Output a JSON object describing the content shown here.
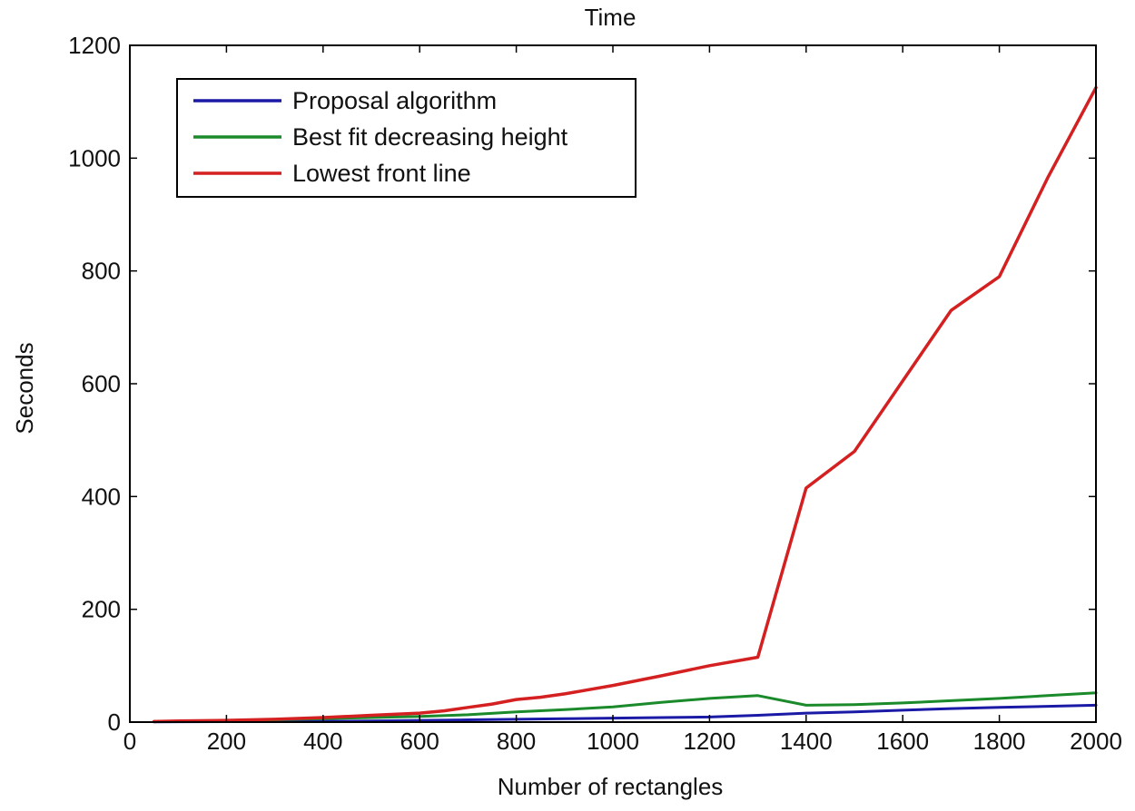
{
  "chart_data": {
    "type": "line",
    "title": "Time",
    "xlabel": "Number of rectangles",
    "ylabel": "Seconds",
    "xlim": [
      0,
      2000
    ],
    "ylim": [
      0,
      1200
    ],
    "xticks": [
      0,
      200,
      400,
      600,
      800,
      1000,
      1200,
      1400,
      1600,
      1800,
      2000
    ],
    "yticks": [
      0,
      200,
      400,
      600,
      800,
      1000,
      1200
    ],
    "grid": false,
    "legend_position": "top-left",
    "series": [
      {
        "name": "Proposal algorithm",
        "color": "#1a1aa6",
        "x": [
          50,
          100,
          200,
          300,
          400,
          500,
          600,
          700,
          800,
          900,
          1000,
          1100,
          1200,
          1300,
          1400,
          1500,
          1600,
          1700,
          1800,
          1900,
          2000
        ],
        "y": [
          0.5,
          0.6,
          0.8,
          1,
          1.5,
          2,
          3,
          4,
          5,
          6,
          7,
          8,
          9,
          12,
          16,
          18,
          21,
          24,
          26,
          28,
          30
        ]
      },
      {
        "name": "Best fit decreasing height",
        "color": "#1a8a2a",
        "x": [
          50,
          100,
          200,
          300,
          400,
          500,
          600,
          700,
          800,
          900,
          1000,
          1100,
          1200,
          1300,
          1400,
          1500,
          1600,
          1700,
          1800,
          1900,
          2000
        ],
        "y": [
          1,
          1.5,
          2,
          4,
          6,
          8,
          10,
          13,
          18,
          22,
          27,
          35,
          42,
          47,
          30,
          31,
          34,
          38,
          42,
          47,
          52
        ]
      },
      {
        "name": "Lowest front line",
        "color": "#d42020",
        "x": [
          50,
          100,
          200,
          300,
          400,
          500,
          600,
          650,
          700,
          750,
          800,
          850,
          900,
          1000,
          1100,
          1200,
          1300,
          1400,
          1500,
          1600,
          1700,
          1800,
          1900,
          2000
        ],
        "y": [
          1,
          2,
          3,
          5,
          8,
          12,
          16,
          20,
          26,
          32,
          40,
          44,
          50,
          65,
          82,
          100,
          115,
          415,
          480,
          605,
          730,
          790,
          965,
          1125
        ]
      }
    ]
  }
}
